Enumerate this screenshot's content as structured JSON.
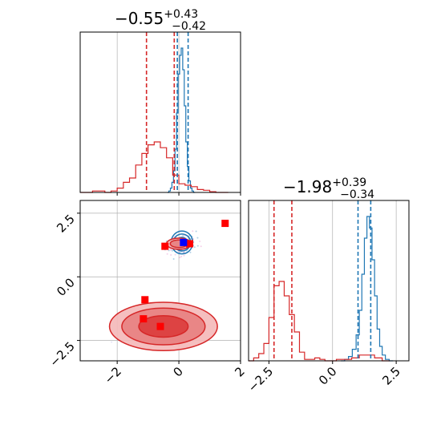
{
  "colors": {
    "blue": "#1f77b4",
    "red": "#d62728",
    "grid": "#b0b0b0",
    "square_red": "#ff0000",
    "square_blue": "#0000ff"
  },
  "chart_data": [
    {
      "type": "histogram",
      "panel": "top-left",
      "title": {
        "value": "−0.55",
        "sup": "+0.43",
        "sub": "−0.42"
      },
      "xlim": [
        -3.2,
        2
      ],
      "grid": true,
      "vlines": {
        "red": [
          -1.05,
          -0.15
        ],
        "blue": [
          -0.05,
          0.3
        ]
      },
      "series": [
        {
          "color": "blue",
          "x": [
            -0.35,
            -0.3,
            -0.25,
            -0.2,
            -0.15,
            -0.1,
            -0.05,
            0,
            0.05,
            0.1,
            0.15,
            0.2,
            0.25,
            0.3,
            0.35,
            0.4,
            0.45,
            0.5
          ],
          "y": [
            0,
            0.01,
            0.03,
            0.07,
            0.15,
            0.3,
            0.55,
            0.82,
            0.95,
            1.0,
            0.85,
            0.6,
            0.35,
            0.18,
            0.08,
            0.03,
            0.01,
            0
          ]
        },
        {
          "color": "red",
          "x": [
            -3.1,
            -2.9,
            -2.7,
            -2.5,
            -2.3,
            -2.1,
            -1.9,
            -1.7,
            -1.5,
            -1.3,
            -1.1,
            -0.9,
            -0.7,
            -0.5,
            -0.3,
            -0.1,
            0.1,
            0.3,
            0.5,
            0.7,
            0.9,
            1.1,
            1.3,
            1.5
          ],
          "y": [
            0,
            0,
            0.01,
            0.01,
            0,
            0.01,
            0.03,
            0.07,
            0.1,
            0.19,
            0.27,
            0.33,
            0.35,
            0.31,
            0.24,
            0.12,
            0.06,
            0.05,
            0.04,
            0.02,
            0.015,
            0.005,
            0,
            0
          ]
        }
      ]
    },
    {
      "type": "scatter",
      "panel": "bottom-left",
      "xlim": [
        -3.2,
        2
      ],
      "ylim": [
        -3.3,
        3
      ],
      "xticks": [
        "−2",
        "0",
        "2"
      ],
      "xtick_values": [
        -2,
        0,
        2
      ],
      "yticks": [
        "2.5",
        "0.0",
        "−2.5"
      ],
      "ytick_values": [
        2.5,
        0,
        -2.5
      ],
      "grid": true,
      "contours": [
        {
          "color": "blue",
          "cx": 0.1,
          "cy": 1.35,
          "rx": [
            0.35,
            0.28,
            0.18
          ],
          "ry": [
            0.45,
            0.33,
            0.2
          ]
        },
        {
          "color": "red",
          "cx": 0.0,
          "cy": 1.3,
          "rx": [
            0.4,
            0.28
          ],
          "ry": [
            0.22,
            0.15
          ]
        },
        {
          "color": "red",
          "cx": -0.5,
          "cy": -1.95,
          "rx": [
            1.75,
            1.35,
            0.8
          ],
          "ry": [
            0.95,
            0.72,
            0.42
          ]
        }
      ],
      "markers": {
        "red_squares": [
          [
            1.5,
            2.1
          ],
          [
            -0.45,
            1.2
          ],
          [
            0.35,
            1.3
          ],
          [
            -1.1,
            -0.9
          ],
          [
            -1.15,
            -1.65
          ],
          [
            -0.6,
            -1.95
          ]
        ],
        "blue_squares": [
          [
            0.15,
            1.35
          ]
        ]
      }
    },
    {
      "type": "histogram",
      "panel": "bottom-right",
      "title": {
        "value": "−1.98",
        "sup": "+0.39",
        "sub": "−0.34"
      },
      "xlim": [
        -3.3,
        3
      ],
      "xticks": [
        "−2.5",
        "0.0",
        "2.5"
      ],
      "xtick_values": [
        -2.5,
        0,
        2.5
      ],
      "grid": true,
      "vlines": {
        "red": [
          -2.3,
          -1.6
        ],
        "blue": [
          1.0,
          1.5
        ]
      },
      "series": [
        {
          "color": "blue",
          "x": [
            0.4,
            0.55,
            0.7,
            0.85,
            1.0,
            1.1,
            1.2,
            1.3,
            1.4,
            1.5,
            1.6,
            1.7,
            1.8,
            1.9,
            2.0,
            2.15,
            2.3
          ],
          "y": [
            0,
            0.01,
            0.03,
            0.08,
            0.18,
            0.35,
            0.6,
            0.85,
            1.0,
            0.92,
            0.7,
            0.45,
            0.22,
            0.1,
            0.04,
            0.01,
            0
          ]
        },
        {
          "color": "red",
          "x": [
            -3.2,
            -3.0,
            -2.8,
            -2.6,
            -2.4,
            -2.2,
            -2.0,
            -1.8,
            -1.6,
            -1.4,
            -1.2,
            -1.0,
            -0.8,
            -0.6,
            -0.4,
            -0.2,
            0,
            0.3,
            0.6,
            0.9,
            1.2,
            1.5,
            1.8,
            2.1
          ],
          "y": [
            0,
            0.02,
            0.05,
            0.12,
            0.3,
            0.52,
            0.55,
            0.45,
            0.32,
            0.2,
            0.06,
            0.01,
            0.01,
            0.02,
            0.01,
            0,
            0,
            0.01,
            0.01,
            0.02,
            0.04,
            0.04,
            0.02,
            0
          ]
        }
      ]
    }
  ]
}
